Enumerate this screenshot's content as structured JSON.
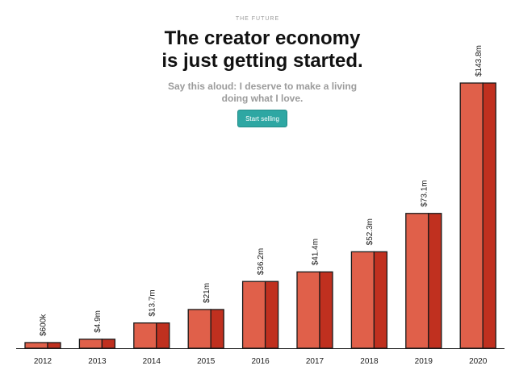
{
  "header": {
    "eyebrow": "THE FUTURE",
    "headline_line1": "The creator economy",
    "headline_line2": "is just getting started.",
    "subtitle_line1": "Say this aloud: I deserve to make a living",
    "subtitle_line2": "doing what I love.",
    "cta_label": "Start selling"
  },
  "colors": {
    "bar_front": "#e0604a",
    "bar_side": "#c0301f",
    "bar_stroke": "#1a1a1a",
    "cta": "#2ea7a3"
  },
  "chart_data": {
    "type": "bar",
    "categories": [
      "2012",
      "2013",
      "2014",
      "2015",
      "2016",
      "2017",
      "2018",
      "2019",
      "2020"
    ],
    "values": [
      0.6,
      4.9,
      13.7,
      21,
      36.2,
      41.4,
      52.3,
      73.1,
      143.8
    ],
    "value_labels": [
      "$600k",
      "$4.9m",
      "$13.7m",
      "$21m",
      "$36.2m",
      "$41.4m",
      "$52.3m",
      "$73.1m",
      "$143.8m"
    ],
    "title": "",
    "xlabel": "",
    "ylabel": "",
    "grid": false,
    "legend": "none"
  }
}
